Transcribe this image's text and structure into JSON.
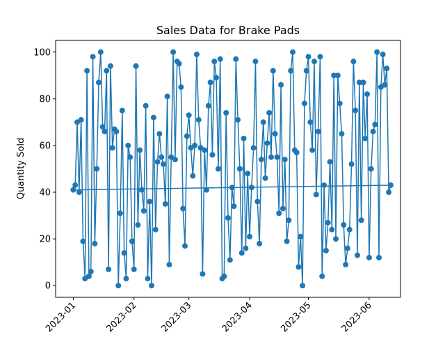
{
  "chart_data": {
    "type": "line",
    "title": "Sales Data for Brake Pads",
    "xlabel": "",
    "ylabel": "Quantity Sold",
    "x_tick_labels": [
      "2023-01",
      "2023-02",
      "2023-03",
      "2023-04",
      "2023-05",
      "2023-06"
    ],
    "y_tick_labels": [
      "0",
      "20",
      "40",
      "60",
      "80",
      "100"
    ],
    "y_ticks": [
      0,
      20,
      40,
      60,
      80,
      100
    ],
    "xlim": [
      "2022-12-23",
      "2023-06-17"
    ],
    "ylim": [
      -5,
      105
    ],
    "grid": false,
    "legend": "none",
    "line_color": "#1f77b4",
    "marker": "circle",
    "series": [
      {
        "start_date": "2023-01-01",
        "interval_days": 1,
        "values": [
          41,
          43,
          70,
          40,
          71,
          19,
          3,
          92,
          4,
          6,
          98,
          18,
          50,
          87,
          100,
          68,
          66,
          92,
          7,
          94,
          59,
          67,
          66,
          0,
          31,
          75,
          14,
          3,
          60,
          55,
          19,
          7,
          94,
          26,
          58,
          41,
          32,
          77,
          3,
          36,
          0,
          72,
          24,
          53,
          65,
          55,
          52,
          35,
          81,
          9,
          55,
          100,
          54,
          96,
          95,
          85,
          33,
          17,
          64,
          73,
          59,
          47,
          60,
          99,
          71,
          59,
          5,
          58,
          41,
          77,
          87,
          56,
          96,
          89,
          50,
          97,
          3,
          4,
          74,
          29,
          11,
          42,
          34,
          97,
          71,
          50,
          14,
          63,
          16,
          48,
          21,
          42,
          59,
          96,
          36,
          18,
          54,
          70,
          46,
          61,
          74,
          55,
          92,
          65,
          55,
          31,
          86,
          33,
          54,
          19,
          28,
          92,
          100,
          58,
          57,
          8,
          21,
          0,
          78,
          92,
          98,
          70,
          58,
          96,
          39,
          66,
          98,
          4,
          43,
          15,
          27,
          53,
          24,
          90,
          20,
          90,
          78,
          65,
          26,
          9,
          16,
          24,
          52,
          96,
          75,
          13,
          87,
          28,
          87,
          63,
          82,
          12,
          50,
          66,
          69,
          100,
          12,
          85,
          99,
          86,
          93,
          40,
          43
        ]
      },
      {
        "name": "",
        "x": [
          "2023-01-01",
          "2023-06-12"
        ],
        "values": [
          41,
          43
        ]
      }
    ]
  }
}
